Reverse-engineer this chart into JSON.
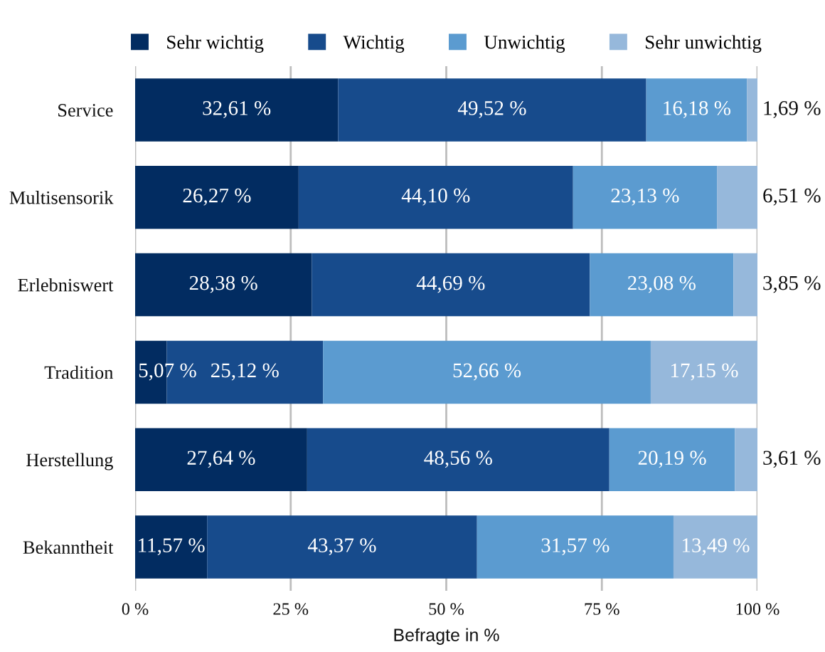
{
  "chart_data": {
    "type": "bar",
    "orientation": "horizontal",
    "stacked": true,
    "categories": [
      "Service",
      "Multisensorik",
      "Erlebniswert",
      "Tradition",
      "Herstellung",
      "Bekanntheit"
    ],
    "series": [
      {
        "name": "Sehr wichtig",
        "color": "#022c61",
        "values": [
          32.61,
          26.27,
          28.38,
          5.07,
          27.64,
          11.57
        ],
        "value_labels": [
          "32,61 %",
          "26,27 %",
          "28,38 %",
          "5,07 %",
          "27,64 %",
          "11,57 %"
        ]
      },
      {
        "name": "Wichtig",
        "color": "#174b8c",
        "values": [
          49.52,
          44.1,
          44.69,
          25.12,
          48.56,
          43.37
        ],
        "value_labels": [
          "49,52 %",
          "44,10 %",
          "44,69 %",
          "25,12 %",
          "48,56 %",
          "43,37 %"
        ]
      },
      {
        "name": "Unwichtig",
        "color": "#5b9bd0",
        "values": [
          16.18,
          23.13,
          23.08,
          52.66,
          20.19,
          31.57
        ],
        "value_labels": [
          "16,18 %",
          "23,13 %",
          "23,08 %",
          "52,66 %",
          "20,19 %",
          "31,57 %"
        ]
      },
      {
        "name": "Sehr unwichtig",
        "color": "#96b8db",
        "values": [
          1.69,
          6.51,
          3.85,
          17.15,
          3.61,
          13.49
        ],
        "value_labels": [
          "1,69 %",
          "6,51 %",
          "3,85 %",
          "17,15 %",
          "3,61 %",
          "13,49 %"
        ]
      }
    ],
    "xlim": [
      0,
      100
    ],
    "xticks": [
      {
        "value": 0,
        "label": "0 %"
      },
      {
        "value": 25,
        "label": "25 %"
      },
      {
        "value": 50,
        "label": "50 %"
      },
      {
        "value": 75,
        "label": "75 %"
      },
      {
        "value": 100,
        "label": "100 %"
      }
    ],
    "xlabel": "Befragte in %",
    "grid": "x",
    "legend": "top"
  }
}
